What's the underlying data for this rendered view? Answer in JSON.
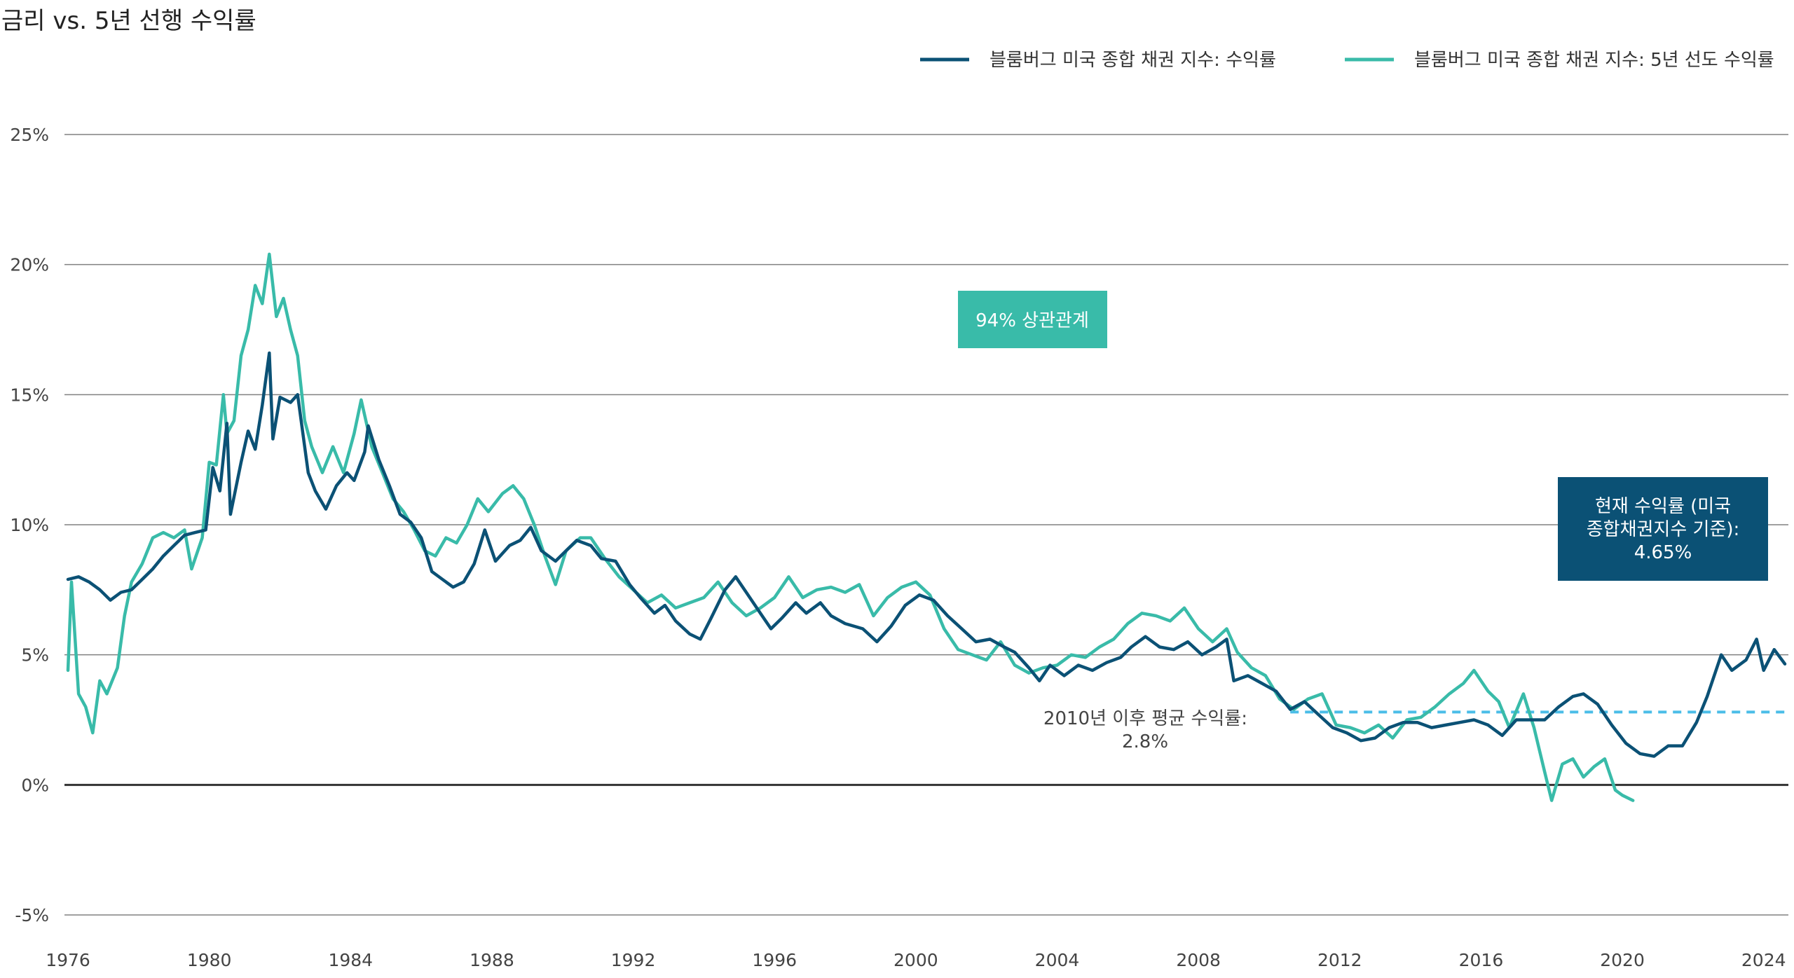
{
  "title": "금리 vs. 5년 선행 수익률",
  "colors": {
    "series_yield": "#0b5175",
    "series_forward": "#39bba9",
    "average_line": "#4bbde8",
    "correlation_box": "#39bba9",
    "current_box": "#0b5175",
    "grid": "#808080",
    "zero_line": "#333333"
  },
  "annotations": {
    "correlation": "94% 상관관계",
    "current_yield": [
      "현재 수익률 (미국",
      "종합채권지수 기준):",
      "4.65%"
    ],
    "average_since_2010": [
      "2010년 이후 평균 수익률:",
      "2.8%"
    ]
  },
  "chart_data": {
    "type": "line",
    "title": "금리 vs. 5년 선행 수익률",
    "xlabel": "",
    "ylabel": "",
    "xlim": [
      1976.0,
      2024.7
    ],
    "ylim": [
      -5,
      25
    ],
    "y_ticks": [
      25,
      20,
      15,
      10,
      5,
      0,
      -5
    ],
    "y_tick_labels": [
      "25%",
      "20%",
      "15%",
      "10%",
      "5%",
      "0%",
      "-5%"
    ],
    "x_ticks": [
      1976,
      1980,
      1984,
      1988,
      1992,
      1996,
      2000,
      2004,
      2008,
      2012,
      2016,
      2020,
      2024
    ],
    "x_tick_labels": [
      "1976",
      "1980",
      "1984",
      "1988",
      "1992",
      "1996",
      "2000",
      "2004",
      "2008",
      "2012",
      "2016",
      "2020",
      "2024"
    ],
    "grid": true,
    "legend_position": "top-right",
    "reference_lines": [
      {
        "y": 2.8,
        "x_start": 2010.6,
        "x_end": 2024.7,
        "style": "dashed",
        "label": "2010년 이후 평균 수익률: 2.8%"
      }
    ],
    "series": [
      {
        "name": "블룸버그 미국 종합 채권 지수: 수익률",
        "points": [
          [
            1976.0,
            7.9
          ],
          [
            1976.3,
            8.0
          ],
          [
            1976.6,
            7.8
          ],
          [
            1976.9,
            7.5
          ],
          [
            1977.2,
            7.1
          ],
          [
            1977.5,
            7.4
          ],
          [
            1977.8,
            7.5
          ],
          [
            1978.1,
            7.9
          ],
          [
            1978.4,
            8.3
          ],
          [
            1978.7,
            8.8
          ],
          [
            1979.0,
            9.2
          ],
          [
            1979.3,
            9.6
          ],
          [
            1979.6,
            9.7
          ],
          [
            1979.9,
            9.8
          ],
          [
            1980.1,
            12.2
          ],
          [
            1980.3,
            11.3
          ],
          [
            1980.5,
            13.9
          ],
          [
            1980.6,
            10.4
          ],
          [
            1980.9,
            12.4
          ],
          [
            1981.1,
            13.6
          ],
          [
            1981.3,
            12.9
          ],
          [
            1981.5,
            14.6
          ],
          [
            1981.7,
            16.6
          ],
          [
            1981.8,
            13.3
          ],
          [
            1982.0,
            14.9
          ],
          [
            1982.3,
            14.7
          ],
          [
            1982.5,
            15.0
          ],
          [
            1982.8,
            12.0
          ],
          [
            1983.0,
            11.3
          ],
          [
            1983.3,
            10.6
          ],
          [
            1983.6,
            11.5
          ],
          [
            1983.9,
            12.0
          ],
          [
            1984.1,
            11.7
          ],
          [
            1984.4,
            12.8
          ],
          [
            1984.5,
            13.8
          ],
          [
            1984.8,
            12.5
          ],
          [
            1985.1,
            11.5
          ],
          [
            1985.4,
            10.4
          ],
          [
            1985.7,
            10.1
          ],
          [
            1986.0,
            9.5
          ],
          [
            1986.3,
            8.2
          ],
          [
            1986.6,
            7.9
          ],
          [
            1986.9,
            7.6
          ],
          [
            1987.2,
            7.8
          ],
          [
            1987.5,
            8.5
          ],
          [
            1987.8,
            9.8
          ],
          [
            1988.1,
            8.6
          ],
          [
            1988.5,
            9.2
          ],
          [
            1988.8,
            9.4
          ],
          [
            1989.1,
            9.9
          ],
          [
            1989.4,
            9.0
          ],
          [
            1989.8,
            8.6
          ],
          [
            1990.1,
            9.0
          ],
          [
            1990.4,
            9.4
          ],
          [
            1990.8,
            9.2
          ],
          [
            1991.1,
            8.7
          ],
          [
            1991.5,
            8.6
          ],
          [
            1991.9,
            7.7
          ],
          [
            1992.2,
            7.2
          ],
          [
            1992.6,
            6.6
          ],
          [
            1992.9,
            6.9
          ],
          [
            1993.2,
            6.3
          ],
          [
            1993.6,
            5.8
          ],
          [
            1993.9,
            5.6
          ],
          [
            1994.2,
            6.4
          ],
          [
            1994.6,
            7.5
          ],
          [
            1994.9,
            8.0
          ],
          [
            1995.2,
            7.4
          ],
          [
            1995.6,
            6.6
          ],
          [
            1995.9,
            6.0
          ],
          [
            1996.2,
            6.4
          ],
          [
            1996.6,
            7.0
          ],
          [
            1996.9,
            6.6
          ],
          [
            1997.3,
            7.0
          ],
          [
            1997.6,
            6.5
          ],
          [
            1998.0,
            6.2
          ],
          [
            1998.5,
            6.0
          ],
          [
            1998.9,
            5.5
          ],
          [
            1999.3,
            6.1
          ],
          [
            1999.7,
            6.9
          ],
          [
            2000.1,
            7.3
          ],
          [
            2000.5,
            7.1
          ],
          [
            2000.9,
            6.5
          ],
          [
            2001.3,
            6.0
          ],
          [
            2001.7,
            5.5
          ],
          [
            2002.1,
            5.6
          ],
          [
            2002.5,
            5.3
          ],
          [
            2002.8,
            5.1
          ],
          [
            2003.2,
            4.5
          ],
          [
            2003.5,
            4.0
          ],
          [
            2003.8,
            4.6
          ],
          [
            2004.2,
            4.2
          ],
          [
            2004.6,
            4.6
          ],
          [
            2005.0,
            4.4
          ],
          [
            2005.4,
            4.7
          ],
          [
            2005.8,
            4.9
          ],
          [
            2006.1,
            5.3
          ],
          [
            2006.5,
            5.7
          ],
          [
            2006.9,
            5.3
          ],
          [
            2007.3,
            5.2
          ],
          [
            2007.7,
            5.5
          ],
          [
            2008.1,
            5.0
          ],
          [
            2008.5,
            5.3
          ],
          [
            2008.8,
            5.6
          ],
          [
            2009.0,
            4.0
          ],
          [
            2009.4,
            4.2
          ],
          [
            2009.8,
            3.9
          ],
          [
            2010.2,
            3.6
          ],
          [
            2010.6,
            2.9
          ],
          [
            2011.0,
            3.2
          ],
          [
            2011.4,
            2.7
          ],
          [
            2011.8,
            2.2
          ],
          [
            2012.2,
            2.0
          ],
          [
            2012.6,
            1.7
          ],
          [
            2013.0,
            1.8
          ],
          [
            2013.4,
            2.2
          ],
          [
            2013.8,
            2.4
          ],
          [
            2014.2,
            2.4
          ],
          [
            2014.6,
            2.2
          ],
          [
            2015.0,
            2.3
          ],
          [
            2015.4,
            2.4
          ],
          [
            2015.8,
            2.5
          ],
          [
            2016.2,
            2.3
          ],
          [
            2016.6,
            1.9
          ],
          [
            2017.0,
            2.5
          ],
          [
            2017.4,
            2.5
          ],
          [
            2017.8,
            2.5
          ],
          [
            2018.2,
            3.0
          ],
          [
            2018.6,
            3.4
          ],
          [
            2018.9,
            3.5
          ],
          [
            2019.3,
            3.1
          ],
          [
            2019.7,
            2.3
          ],
          [
            2020.1,
            1.6
          ],
          [
            2020.5,
            1.2
          ],
          [
            2020.9,
            1.1
          ],
          [
            2021.3,
            1.5
          ],
          [
            2021.7,
            1.5
          ],
          [
            2022.1,
            2.4
          ],
          [
            2022.4,
            3.4
          ],
          [
            2022.8,
            5.0
          ],
          [
            2023.1,
            4.4
          ],
          [
            2023.5,
            4.8
          ],
          [
            2023.8,
            5.6
          ],
          [
            2024.0,
            4.4
          ],
          [
            2024.3,
            5.2
          ],
          [
            2024.6,
            4.65
          ]
        ]
      },
      {
        "name": "블룸버그 미국 종합 채권 지수: 5년 선도 수익률",
        "points": [
          [
            1976.0,
            4.4
          ],
          [
            1976.1,
            7.8
          ],
          [
            1976.3,
            3.5
          ],
          [
            1976.5,
            3.0
          ],
          [
            1976.7,
            2.0
          ],
          [
            1976.9,
            4.0
          ],
          [
            1977.1,
            3.5
          ],
          [
            1977.4,
            4.5
          ],
          [
            1977.6,
            6.5
          ],
          [
            1977.8,
            7.8
          ],
          [
            1978.1,
            8.5
          ],
          [
            1978.4,
            9.5
          ],
          [
            1978.7,
            9.7
          ],
          [
            1979.0,
            9.5
          ],
          [
            1979.3,
            9.8
          ],
          [
            1979.5,
            8.3
          ],
          [
            1979.8,
            9.5
          ],
          [
            1980.0,
            12.4
          ],
          [
            1980.2,
            12.3
          ],
          [
            1980.4,
            15.0
          ],
          [
            1980.5,
            13.5
          ],
          [
            1980.7,
            14.0
          ],
          [
            1980.9,
            16.5
          ],
          [
            1981.1,
            17.5
          ],
          [
            1981.3,
            19.2
          ],
          [
            1981.5,
            18.5
          ],
          [
            1981.7,
            20.4
          ],
          [
            1981.9,
            18.0
          ],
          [
            1982.1,
            18.7
          ],
          [
            1982.3,
            17.5
          ],
          [
            1982.5,
            16.5
          ],
          [
            1982.7,
            14.0
          ],
          [
            1982.9,
            13.0
          ],
          [
            1983.2,
            12.0
          ],
          [
            1983.5,
            13.0
          ],
          [
            1983.8,
            12.0
          ],
          [
            1984.1,
            13.5
          ],
          [
            1984.3,
            14.8
          ],
          [
            1984.6,
            13.0
          ],
          [
            1984.9,
            12.0
          ],
          [
            1985.2,
            11.0
          ],
          [
            1985.5,
            10.5
          ],
          [
            1985.8,
            9.8
          ],
          [
            1986.1,
            9.0
          ],
          [
            1986.4,
            8.8
          ],
          [
            1986.7,
            9.5
          ],
          [
            1987.0,
            9.3
          ],
          [
            1987.3,
            10.0
          ],
          [
            1987.6,
            11.0
          ],
          [
            1987.9,
            10.5
          ],
          [
            1988.3,
            11.2
          ],
          [
            1988.6,
            11.5
          ],
          [
            1988.9,
            11.0
          ],
          [
            1989.2,
            10.0
          ],
          [
            1989.5,
            8.8
          ],
          [
            1989.8,
            7.7
          ],
          [
            1990.1,
            9.0
          ],
          [
            1990.5,
            9.5
          ],
          [
            1990.8,
            9.5
          ],
          [
            1991.2,
            8.7
          ],
          [
            1991.6,
            8.0
          ],
          [
            1992.0,
            7.5
          ],
          [
            1992.4,
            7.0
          ],
          [
            1992.8,
            7.3
          ],
          [
            1993.2,
            6.8
          ],
          [
            1993.6,
            7.0
          ],
          [
            1994.0,
            7.2
          ],
          [
            1994.4,
            7.8
          ],
          [
            1994.8,
            7.0
          ],
          [
            1995.2,
            6.5
          ],
          [
            1995.6,
            6.8
          ],
          [
            1996.0,
            7.2
          ],
          [
            1996.4,
            8.0
          ],
          [
            1996.8,
            7.2
          ],
          [
            1997.2,
            7.5
          ],
          [
            1997.6,
            7.6
          ],
          [
            1998.0,
            7.4
          ],
          [
            1998.4,
            7.7
          ],
          [
            1998.8,
            6.5
          ],
          [
            1999.2,
            7.2
          ],
          [
            1999.6,
            7.6
          ],
          [
            2000.0,
            7.8
          ],
          [
            2000.4,
            7.3
          ],
          [
            2000.8,
            6.0
          ],
          [
            2001.2,
            5.2
          ],
          [
            2001.6,
            5.0
          ],
          [
            2002.0,
            4.8
          ],
          [
            2002.4,
            5.5
          ],
          [
            2002.8,
            4.6
          ],
          [
            2003.2,
            4.3
          ],
          [
            2003.6,
            4.5
          ],
          [
            2004.0,
            4.6
          ],
          [
            2004.4,
            5.0
          ],
          [
            2004.8,
            4.9
          ],
          [
            2005.2,
            5.3
          ],
          [
            2005.6,
            5.6
          ],
          [
            2006.0,
            6.2
          ],
          [
            2006.4,
            6.6
          ],
          [
            2006.8,
            6.5
          ],
          [
            2007.2,
            6.3
          ],
          [
            2007.6,
            6.8
          ],
          [
            2008.0,
            6.0
          ],
          [
            2008.4,
            5.5
          ],
          [
            2008.8,
            6.0
          ],
          [
            2009.1,
            5.1
          ],
          [
            2009.5,
            4.5
          ],
          [
            2009.9,
            4.2
          ],
          [
            2010.3,
            3.3
          ],
          [
            2010.7,
            2.9
          ],
          [
            2011.1,
            3.3
          ],
          [
            2011.5,
            3.5
          ],
          [
            2011.9,
            2.3
          ],
          [
            2012.3,
            2.2
          ],
          [
            2012.7,
            2.0
          ],
          [
            2013.1,
            2.3
          ],
          [
            2013.5,
            1.8
          ],
          [
            2013.9,
            2.5
          ],
          [
            2014.3,
            2.6
          ],
          [
            2014.7,
            3.0
          ],
          [
            2015.1,
            3.5
          ],
          [
            2015.5,
            3.9
          ],
          [
            2015.8,
            4.4
          ],
          [
            2016.2,
            3.6
          ],
          [
            2016.5,
            3.2
          ],
          [
            2016.8,
            2.2
          ],
          [
            2017.2,
            3.5
          ],
          [
            2017.5,
            2.2
          ],
          [
            2017.8,
            0.5
          ],
          [
            2018.0,
            -0.6
          ],
          [
            2018.3,
            0.8
          ],
          [
            2018.6,
            1.0
          ],
          [
            2018.9,
            0.3
          ],
          [
            2019.2,
            0.7
          ],
          [
            2019.5,
            1.0
          ],
          [
            2019.8,
            -0.2
          ],
          [
            2020.0,
            -0.4
          ],
          [
            2020.3,
            -0.6
          ]
        ]
      }
    ]
  }
}
